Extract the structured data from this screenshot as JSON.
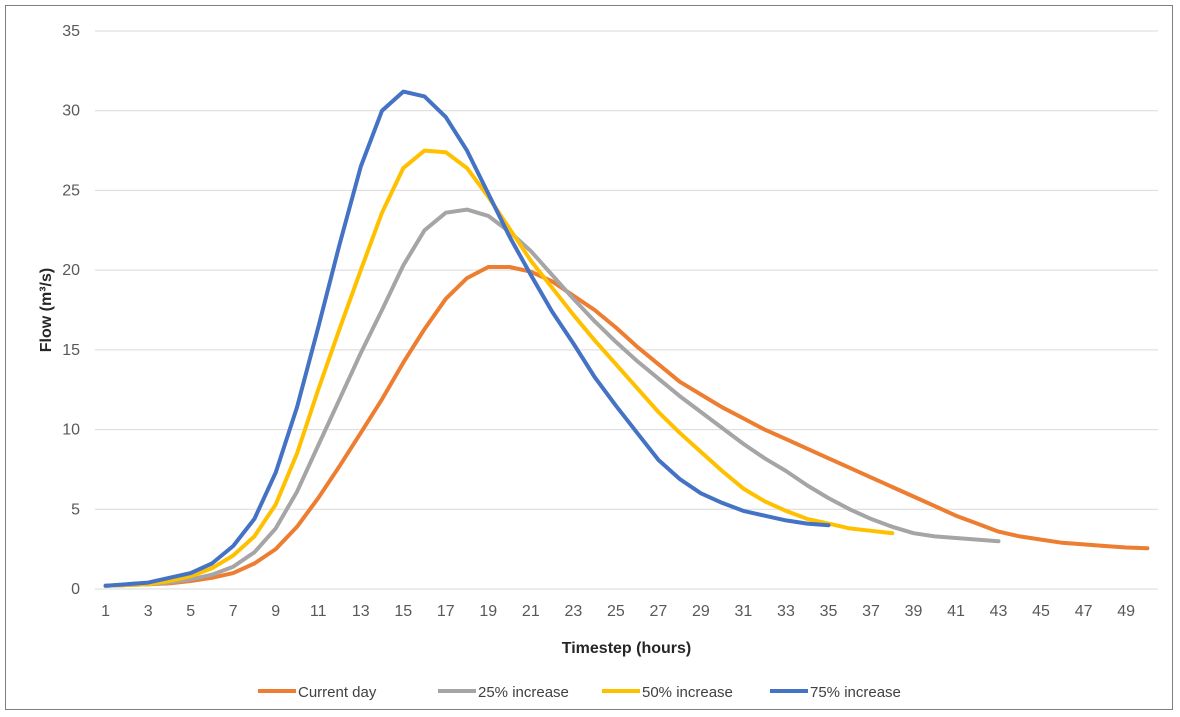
{
  "chart_data": {
    "type": "line",
    "title": "",
    "xlabel": "Timestep (hours)",
    "ylabel": "Flow (m³/s)",
    "xlim": [
      1,
      50
    ],
    "ylim": [
      0,
      35
    ],
    "y_ticks": [
      0,
      5,
      10,
      15,
      20,
      25,
      30,
      35
    ],
    "x_ticks": [
      1,
      3,
      5,
      7,
      9,
      11,
      13,
      15,
      17,
      19,
      21,
      23,
      25,
      27,
      29,
      31,
      33,
      35,
      37,
      39,
      41,
      43,
      45,
      47,
      49
    ],
    "grid": true,
    "legend_position": "bottom",
    "series": [
      {
        "name": "Current day",
        "color": "#ED7D31",
        "x": [
          1,
          2,
          3,
          4,
          5,
          6,
          7,
          8,
          9,
          10,
          11,
          12,
          13,
          14,
          15,
          16,
          17,
          18,
          19,
          20,
          21,
          22,
          23,
          24,
          25,
          26,
          27,
          28,
          29,
          30,
          31,
          32,
          33,
          34,
          35,
          36,
          37,
          38,
          39,
          40,
          41,
          42,
          43,
          44,
          45,
          46,
          47,
          48,
          49,
          50
        ],
        "values": [
          0.2,
          0.25,
          0.3,
          0.35,
          0.5,
          0.7,
          1.0,
          1.6,
          2.5,
          3.9,
          5.7,
          7.7,
          9.8,
          11.9,
          14.2,
          16.3,
          18.2,
          19.5,
          20.2,
          20.2,
          19.9,
          19.3,
          18.4,
          17.5,
          16.4,
          15.2,
          14.1,
          13.0,
          12.2,
          11.4,
          10.7,
          10.0,
          9.4,
          8.8,
          8.2,
          7.6,
          7.0,
          6.4,
          5.8,
          5.2,
          4.6,
          4.1,
          3.6,
          3.3,
          3.1,
          2.9,
          2.8,
          2.7,
          2.6,
          2.55
        ]
      },
      {
        "name": "25% increase",
        "color": "#A5A5A5",
        "x": [
          1,
          2,
          3,
          4,
          5,
          6,
          7,
          8,
          9,
          10,
          11,
          12,
          13,
          14,
          15,
          16,
          17,
          18,
          19,
          20,
          21,
          22,
          23,
          24,
          25,
          26,
          27,
          28,
          29,
          30,
          31,
          32,
          33,
          34,
          35,
          36,
          37,
          38,
          39,
          40,
          41,
          42,
          43
        ],
        "values": [
          0.2,
          0.25,
          0.3,
          0.4,
          0.6,
          0.9,
          1.4,
          2.3,
          3.8,
          6.1,
          9.0,
          11.9,
          14.8,
          17.5,
          20.3,
          22.5,
          23.6,
          23.8,
          23.4,
          22.4,
          21.2,
          19.7,
          18.2,
          16.8,
          15.5,
          14.3,
          13.2,
          12.1,
          11.1,
          10.1,
          9.1,
          8.2,
          7.4,
          6.5,
          5.7,
          5.0,
          4.4,
          3.9,
          3.5,
          3.3,
          3.2,
          3.1,
          3.0
        ]
      },
      {
        "name": "50% increase",
        "color": "#FFC000",
        "x": [
          1,
          2,
          3,
          4,
          5,
          6,
          7,
          8,
          9,
          10,
          11,
          12,
          13,
          14,
          15,
          16,
          17,
          18,
          19,
          20,
          21,
          22,
          23,
          24,
          25,
          26,
          27,
          28,
          29,
          30,
          31,
          32,
          33,
          34,
          35,
          36,
          37,
          38
        ],
        "values": [
          0.2,
          0.25,
          0.3,
          0.5,
          0.8,
          1.3,
          2.1,
          3.3,
          5.3,
          8.5,
          12.5,
          16.3,
          20.0,
          23.6,
          26.4,
          27.5,
          27.4,
          26.4,
          24.6,
          22.6,
          20.6,
          18.9,
          17.2,
          15.6,
          14.1,
          12.6,
          11.1,
          9.8,
          8.6,
          7.4,
          6.3,
          5.5,
          4.9,
          4.4,
          4.1,
          3.8,
          3.65,
          3.5
        ]
      },
      {
        "name": "75% increase",
        "color": "#4472C4",
        "x": [
          1,
          2,
          3,
          4,
          5,
          6,
          7,
          8,
          9,
          10,
          11,
          12,
          13,
          14,
          15,
          16,
          17,
          18,
          19,
          20,
          21,
          22,
          23,
          24,
          25,
          26,
          27,
          28,
          29,
          30,
          31,
          32,
          33,
          34,
          35
        ],
        "values": [
          0.2,
          0.3,
          0.4,
          0.7,
          1.0,
          1.6,
          2.7,
          4.4,
          7.3,
          11.4,
          16.4,
          21.6,
          26.5,
          30.0,
          31.2,
          30.9,
          29.6,
          27.5,
          24.8,
          22.1,
          19.7,
          17.4,
          15.4,
          13.3,
          11.5,
          9.8,
          8.1,
          6.9,
          6.0,
          5.4,
          4.9,
          4.6,
          4.3,
          4.1,
          4.0
        ]
      }
    ]
  }
}
